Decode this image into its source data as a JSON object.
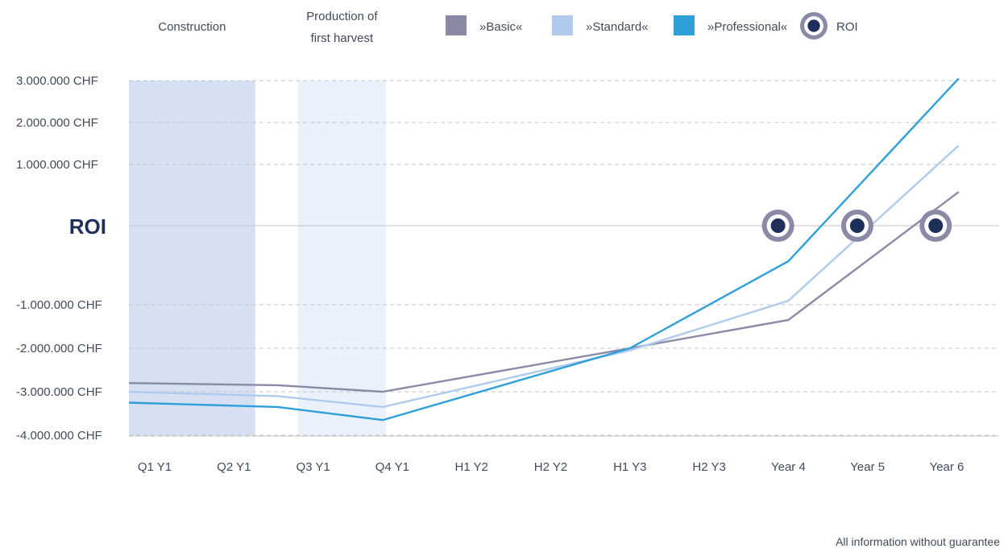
{
  "chart_data": {
    "type": "line",
    "categories": [
      "Q1 Y1",
      "Q2 Y1",
      "Q3 Y1",
      "Q4 Y1",
      "H1 Y2",
      "H2 Y2",
      "H1 Y3",
      "H2 Y3",
      "Year 4",
      "Year 5",
      "Year 6"
    ],
    "series": [
      {
        "name": "»Basic«",
        "color": "#8a8aa6",
        "x": [
          0,
          2,
          3,
          6,
          8,
          10.15
        ],
        "values": [
          -2800000,
          -2850000,
          -3000000,
          -2000000,
          -1350000,
          550000
        ]
      },
      {
        "name": "»Standard«",
        "color": "#aecbee",
        "x": [
          0,
          2,
          3,
          6,
          8,
          10.15
        ],
        "values": [
          -3000000,
          -3100000,
          -3350000,
          -2050000,
          -950000,
          1450000
        ]
      },
      {
        "name": "»Professional«",
        "color": "#2f9fd9",
        "x": [
          0,
          2,
          3,
          6,
          8,
          10.15
        ],
        "values": [
          -3250000,
          -3350000,
          -3650000,
          -2000000,
          -450000,
          3050000
        ]
      }
    ],
    "roi_points": [
      {
        "series": "»Professional«",
        "x": 7.87,
        "value": 0
      },
      {
        "series": "»Standard«",
        "x": 8.87,
        "value": 0
      },
      {
        "series": "»Basic«",
        "x": 9.86,
        "value": 0
      }
    ],
    "roi_legend": "ROI",
    "roi_axis_label": "ROI",
    "yticks": [
      {
        "value": 3000000,
        "label": "3.000.000 CHF"
      },
      {
        "value": 2000000,
        "label": "2.000.000 CHF"
      },
      {
        "value": 1000000,
        "label": "1.000.000 CHF"
      },
      {
        "value": -1000000,
        "label": "-1.000.000 CHF"
      },
      {
        "value": -2000000,
        "label": "-2.000.000 CHF"
      },
      {
        "value": -3000000,
        "label": "-3.000.000 CHF"
      },
      {
        "value": -4000000,
        "label": "-4.000.000 CHF"
      }
    ],
    "bands": [
      {
        "label": [
          "Construction"
        ],
        "from": 0,
        "to": 1.35,
        "color": "#d6e0f2"
      },
      {
        "label": [
          "Production of",
          "first harvest"
        ],
        "from": 1.85,
        "to": 3,
        "color": "#eaf1fb"
      }
    ],
    "grid": true,
    "legend_position": "top",
    "footnote": "All information without guarantee"
  }
}
